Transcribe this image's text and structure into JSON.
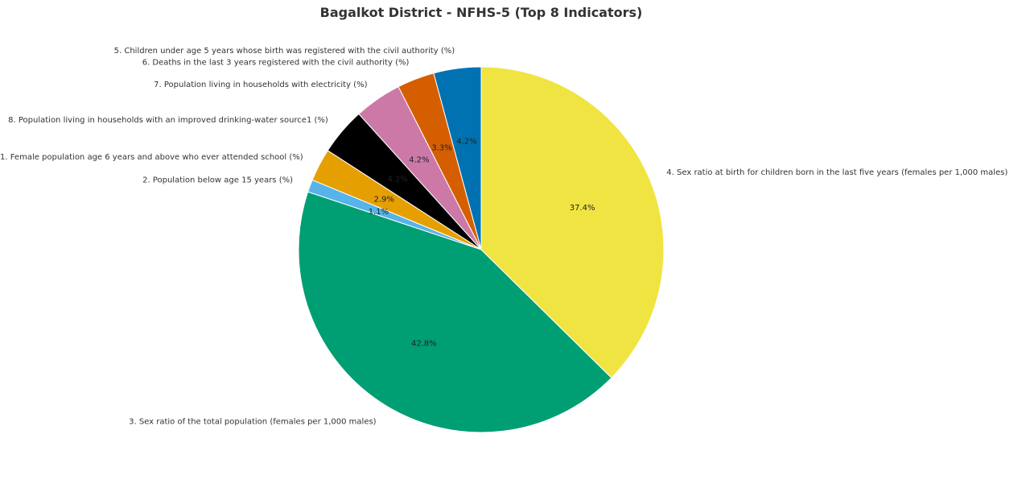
{
  "chart_data": {
    "type": "pie",
    "title": "Bagalkot District - NFHS-5 (Top 8 Indicators)",
    "start_angle_deg": 90,
    "direction": "counterclockwise",
    "slices": [
      {
        "label": "5. Children under age 5 years whose birth was registered with the civil authority (%)",
        "value": 4.2,
        "pct_label": "4.2%",
        "color": "#0072b2"
      },
      {
        "label": "6. Deaths in the last 3 years registered with the civil authority (%)",
        "value": 3.3,
        "pct_label": "3.3%",
        "color": "#d55e00"
      },
      {
        "label": "7. Population living in households with electricity (%)",
        "value": 4.2,
        "pct_label": "4.2%",
        "color": "#cc79a7"
      },
      {
        "label": "8. Population living in households with an improved drinking-water source1 (%)",
        "value": 4.2,
        "pct_label": "4.2%",
        "color": "#000000"
      },
      {
        "label": "1. Female population age 6 years and above who ever attended school (%)",
        "value": 2.9,
        "pct_label": "2.9%",
        "color": "#e69f00"
      },
      {
        "label": "2. Population below age 15 years (%)",
        "value": 1.1,
        "pct_label": "1.1%",
        "color": "#56b4e9"
      },
      {
        "label": "3. Sex ratio of the total population (females per 1,000 males)",
        "value": 42.8,
        "pct_label": "42.8%",
        "color": "#009e73"
      },
      {
        "label": "4. Sex ratio at birth for children born in the last five years (females per 1,000 males)",
        "value": 37.4,
        "pct_label": "37.4%",
        "color": "#f0e442"
      }
    ]
  }
}
